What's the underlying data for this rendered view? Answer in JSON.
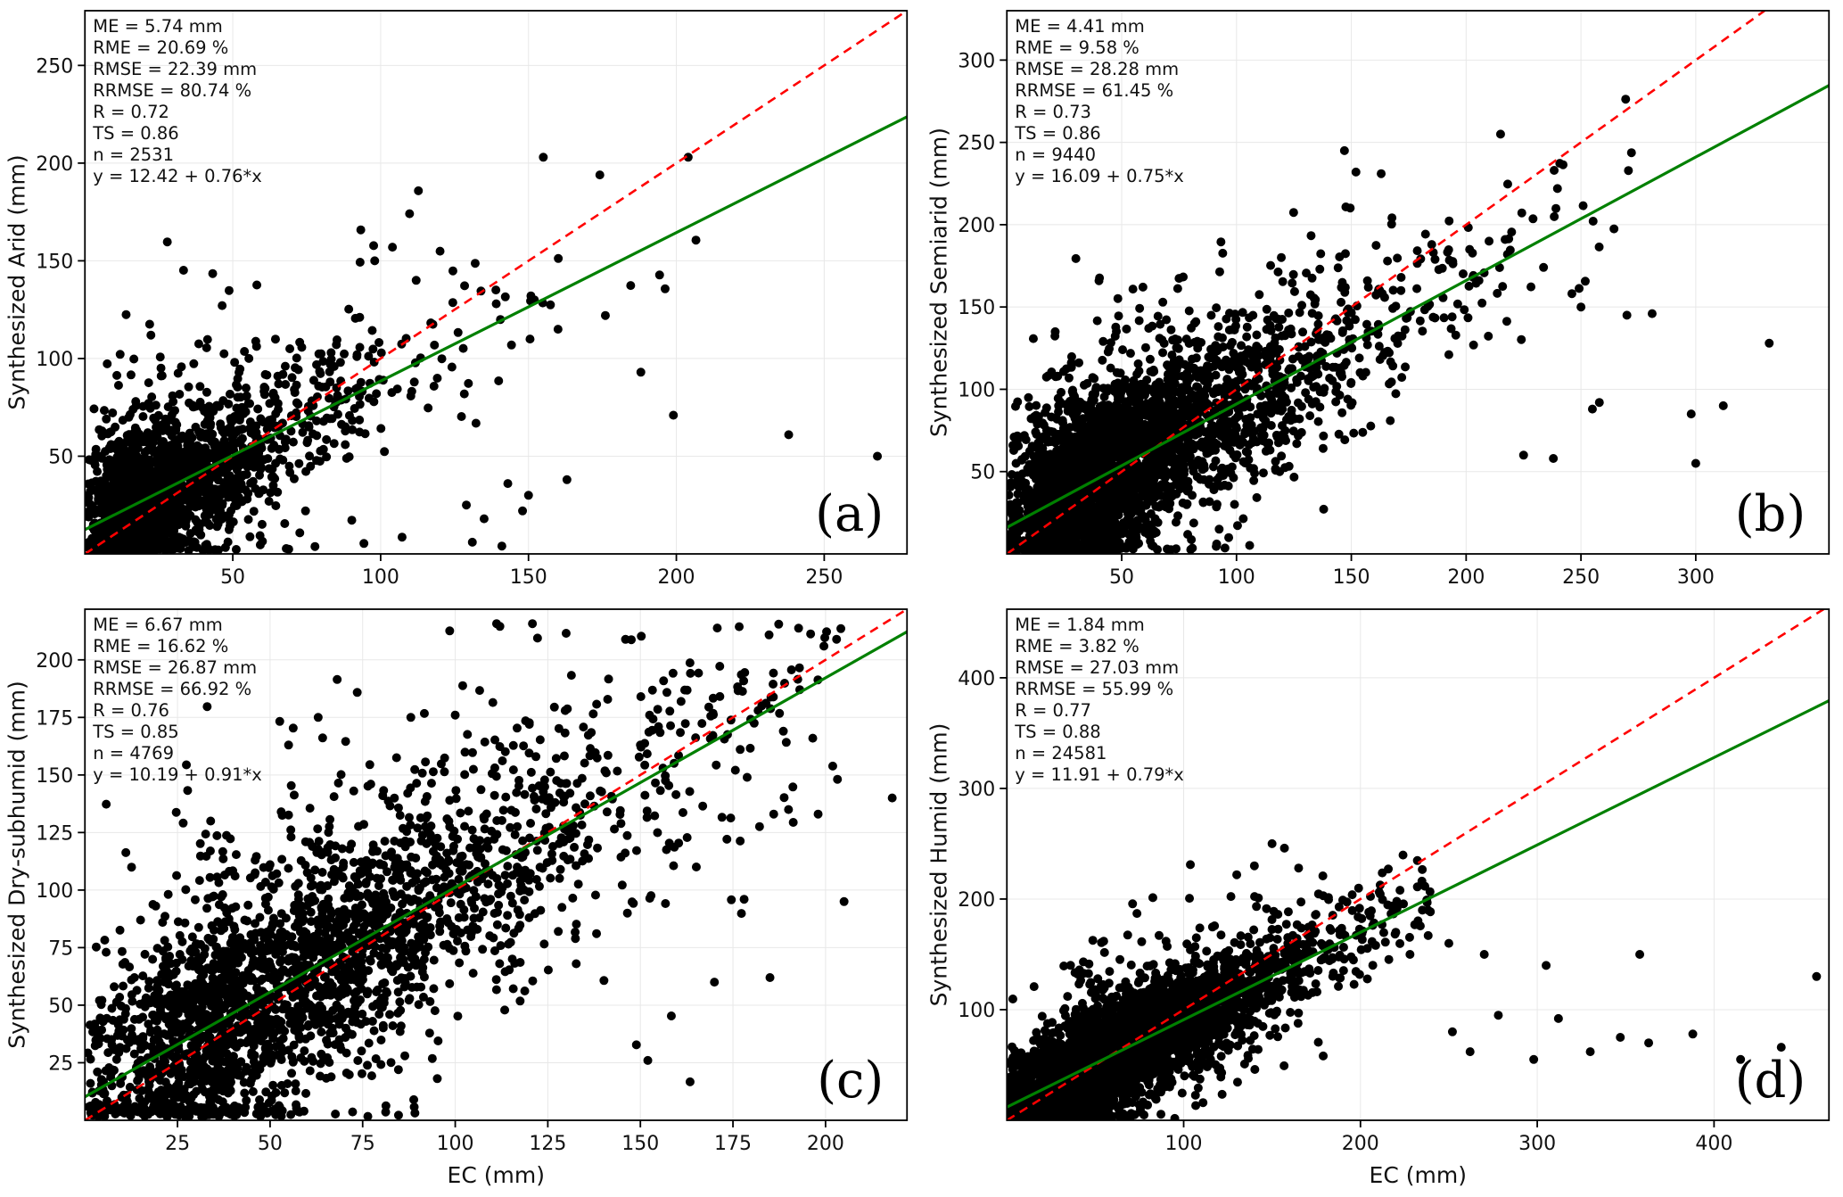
{
  "figure": {
    "rows": 2,
    "cols": 2,
    "background": "#ffffff"
  },
  "colors": {
    "point": "#000000",
    "identity_line": "#ff0000",
    "regression_line": "#008000",
    "grid": "#e8e8e8",
    "axis": "#000000",
    "text": "#111111",
    "panel_label": "#000000"
  },
  "chart_data": [
    {
      "type": "scatter",
      "panel_label": "(a)",
      "xlabel": "",
      "ylabel": "Synthesized Arid (mm)",
      "xlim": [
        0,
        278
      ],
      "ylim": [
        0,
        278
      ],
      "xticks": [
        50,
        100,
        150,
        200,
        250
      ],
      "yticks": [
        50,
        100,
        150,
        200,
        250
      ],
      "grid": true,
      "n_points": 2531,
      "stats_lines": [
        "ME = 5.74 mm",
        "RME = 20.69 %",
        "RMSE = 22.39 mm",
        "RRMSE = 80.74 %",
        "R = 0.72",
        "TS = 0.86",
        "n = 2531",
        "y = 12.42 + 0.76*x"
      ],
      "regression": {
        "intercept": 12.42,
        "slope": 0.76,
        "equation": "y = 12.42 + 0.76*x"
      },
      "identity": {
        "style": "dashed",
        "slope": 1,
        "intercept": 0
      },
      "cloud": {
        "seed": 7,
        "render_n": 2000,
        "x_log_mean": 3.35,
        "x_log_sigma": 0.75,
        "low_frac": 0.12,
        "low_span": 22,
        "x_max": 215,
        "noise_sd_main": 18,
        "noise_sd_wide": 42,
        "wide_frac": 0.18,
        "y_min": 1.5,
        "y_max": 270
      },
      "outliers": [
        [
          155,
          203
        ],
        [
          204,
          203
        ],
        [
          199,
          71
        ],
        [
          238,
          61
        ],
        [
          268,
          50
        ],
        [
          188,
          93
        ],
        [
          150,
          30
        ],
        [
          148,
          22
        ],
        [
          163,
          38
        ],
        [
          143,
          36
        ],
        [
          129,
          25
        ],
        [
          135,
          18
        ],
        [
          112,
          140
        ],
        [
          104,
          157
        ],
        [
          98,
          150
        ],
        [
          176,
          122
        ],
        [
          160,
          115
        ],
        [
          152,
          130
        ],
        [
          131,
          6
        ],
        [
          141,
          4
        ]
      ]
    },
    {
      "type": "scatter",
      "panel_label": "(b)",
      "xlabel": "",
      "ylabel": "Synthesized Semiarid (mm)",
      "xlim": [
        0,
        358
      ],
      "ylim": [
        0,
        330
      ],
      "xticks": [
        50,
        100,
        150,
        200,
        250,
        300
      ],
      "yticks": [
        50,
        100,
        150,
        200,
        250,
        300
      ],
      "grid": true,
      "n_points": 9440,
      "stats_lines": [
        "ME = 4.41 mm",
        "RME = 9.58 %",
        "RMSE = 28.28 mm",
        "RRMSE = 61.45 %",
        "R = 0.73",
        "TS = 0.86",
        "n = 9440",
        "y = 16.09 + 0.75*x"
      ],
      "regression": {
        "intercept": 16.09,
        "slope": 0.75,
        "equation": "y = 16.09 + 0.75*x"
      },
      "identity": {
        "style": "dashed",
        "slope": 1,
        "intercept": 0
      },
      "cloud": {
        "seed": 11,
        "render_n": 3200,
        "x_log_mean": 4.05,
        "x_log_sigma": 0.62,
        "low_frac": 0.2,
        "low_span": 45,
        "x_max": 272,
        "noise_sd_main": 26,
        "noise_sd_wide": 50,
        "wide_frac": 0.2,
        "y_min": 1.5,
        "y_max": 326
      },
      "outliers": [
        [
          147,
          245
        ],
        [
          152,
          232
        ],
        [
          163,
          231
        ],
        [
          185,
          188
        ],
        [
          210,
          190
        ],
        [
          218,
          182
        ],
        [
          250,
          150
        ],
        [
          258,
          92
        ],
        [
          270,
          145
        ],
        [
          281,
          146
        ],
        [
          298,
          85
        ],
        [
          332,
          128
        ],
        [
          225,
          60
        ],
        [
          238,
          58
        ],
        [
          255,
          88
        ],
        [
          300,
          55
        ],
        [
          312,
          90
        ]
      ]
    },
    {
      "type": "scatter",
      "panel_label": "(c)",
      "xlabel": "EC (mm)",
      "ylabel": "Synthesized Dry-subhumid (mm)",
      "xlim": [
        0,
        222
      ],
      "ylim": [
        0,
        222
      ],
      "xticks": [
        25,
        50,
        75,
        100,
        125,
        150,
        175,
        200
      ],
      "yticks": [
        25,
        50,
        75,
        100,
        125,
        150,
        175,
        200
      ],
      "grid": true,
      "n_points": 4769,
      "stats_lines": [
        "ME = 6.67 mm",
        "RME = 16.62 %",
        "RMSE = 26.87 mm",
        "RRMSE = 66.92 %",
        "R = 0.76",
        "TS = 0.85",
        "n = 4769",
        "y = 10.19 + 0.91*x"
      ],
      "regression": {
        "intercept": 10.19,
        "slope": 0.91,
        "equation": "y = 10.19 + 0.91*x"
      },
      "identity": {
        "style": "dashed",
        "slope": 1,
        "intercept": 0
      },
      "cloud": {
        "seed": 23,
        "render_n": 2600,
        "x_log_mean": 4.2,
        "x_log_sigma": 0.58,
        "low_frac": 0.2,
        "low_span": 40,
        "x_max": 205,
        "noise_sd_main": 24,
        "noise_sd_wide": 48,
        "wide_frac": 0.22,
        "y_min": 1.5,
        "y_max": 216
      },
      "outliers": [
        [
          218,
          140
        ],
        [
          205,
          95
        ],
        [
          198,
          133
        ],
        [
          190,
          135
        ],
        [
          186,
          133
        ],
        [
          178,
          96
        ],
        [
          63,
          175
        ],
        [
          100,
          176
        ],
        [
          88,
          175
        ],
        [
          55,
          163
        ],
        [
          150,
          163
        ],
        [
          120,
          172
        ],
        [
          152,
          26
        ],
        [
          185,
          62
        ],
        [
          170,
          60
        ]
      ]
    },
    {
      "type": "scatter",
      "panel_label": "(d)",
      "xlabel": "EC (mm)",
      "ylabel": "Synthesized Humid (mm)",
      "xlim": [
        0,
        465
      ],
      "ylim": [
        0,
        462
      ],
      "xticks": [
        100,
        200,
        300,
        400
      ],
      "yticks": [
        100,
        200,
        300,
        400
      ],
      "grid": true,
      "n_points": 24581,
      "stats_lines": [
        "ME = 1.84 mm",
        "RME = 3.82 %",
        "RMSE = 27.03 mm",
        "RRMSE = 55.99 %",
        "R = 0.77",
        "TS = 0.88",
        "n = 24581",
        "y = 11.91 + 0.79*x"
      ],
      "regression": {
        "intercept": 11.91,
        "slope": 0.79,
        "equation": "y = 11.91 + 0.79*x"
      },
      "identity": {
        "style": "dashed",
        "slope": 1,
        "intercept": 0
      },
      "cloud": {
        "seed": 37,
        "render_n": 4200,
        "x_log_mean": 4.3,
        "x_log_sigma": 0.5,
        "low_frac": 0.25,
        "low_span": 60,
        "x_max": 240,
        "noise_sd_main": 22,
        "noise_sd_wide": 45,
        "wide_frac": 0.15,
        "y_min": 1.5,
        "y_max": 455
      },
      "outliers": [
        [
          140,
          230
        ],
        [
          150,
          250
        ],
        [
          157,
          246
        ],
        [
          165,
          228
        ],
        [
          130,
          222
        ],
        [
          220,
          170
        ],
        [
          228,
          150
        ],
        [
          235,
          190
        ],
        [
          250,
          160
        ],
        [
          252,
          80
        ],
        [
          262,
          62
        ],
        [
          270,
          150
        ],
        [
          278,
          95
        ],
        [
          298,
          55
        ],
        [
          305,
          140
        ],
        [
          312,
          92
        ],
        [
          330,
          62
        ],
        [
          347,
          75
        ],
        [
          358,
          150
        ],
        [
          363,
          70
        ],
        [
          388,
          78
        ],
        [
          415,
          55
        ],
        [
          438,
          66
        ],
        [
          458,
          130
        ]
      ]
    }
  ]
}
